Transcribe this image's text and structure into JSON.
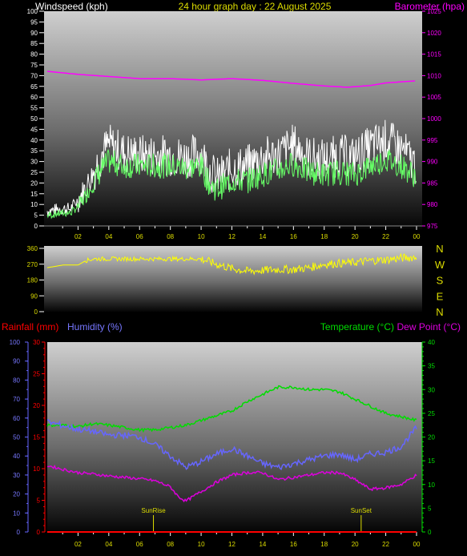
{
  "header": {
    "left_label": "Windspeed (kph)",
    "center_title": "24 hour graph day : 22 August 2025",
    "right_label": "Barometer (hpa)"
  },
  "lower_header": {
    "rain_label": "Rainfall (mm)",
    "humidity_label": "Humidity (%)",
    "temp_label": "Temperature (°C)",
    "dew_label": "Dew Point (°C)"
  },
  "colors": {
    "windspeed": "#ffffff",
    "wind_avg": "#66ff66",
    "barometer": "#ff00ff",
    "direction": "#ffff00",
    "rain": "#ff0000",
    "humidity": "#6666ff",
    "temperature": "#00dd00",
    "dewpoint": "#dd00dd",
    "sunmarker": "#dddd00",
    "axis_text_left": "#ffffff"
  },
  "chart_data": [
    {
      "type": "line",
      "id": "wind_chart",
      "x_ticks": [
        "02",
        "04",
        "06",
        "08",
        "10",
        "12",
        "14",
        "16",
        "18",
        "20",
        "22",
        "00"
      ],
      "y_left_ticks": [
        "100",
        "95",
        "90",
        "85",
        "80",
        "75",
        "70",
        "65",
        "60",
        "55",
        "50",
        "45",
        "40",
        "35",
        "30",
        "25",
        "20",
        "15",
        "10",
        "5",
        "0"
      ],
      "y_right_ticks": [
        "1025",
        "1020",
        "1015",
        "1010",
        "1005",
        "1000",
        "995",
        "990",
        "985",
        "980",
        "975"
      ],
      "ylim_left": [
        0,
        100
      ],
      "ylim_right": [
        975,
        1025
      ],
      "series": [
        {
          "name": "Windspeed (kph)",
          "color": "#ffffff",
          "x": [
            0,
            1,
            1.5,
            2,
            2.5,
            3,
            3.5,
            4,
            5,
            6,
            7,
            8,
            9,
            10,
            10.5,
            11,
            12,
            13,
            14,
            15,
            16,
            17,
            18,
            19,
            20,
            21,
            22,
            23,
            24
          ],
          "values": [
            7,
            8,
            8,
            12,
            18,
            25,
            33,
            38,
            34,
            33,
            33,
            33,
            32,
            34,
            27,
            22,
            27,
            28,
            32,
            33,
            38,
            32,
            31,
            33,
            32,
            37,
            40,
            36,
            28
          ]
        },
        {
          "name": "Average",
          "color": "#66ff66",
          "x": [
            0,
            1,
            1.5,
            2,
            2.5,
            3,
            3.5,
            4,
            5,
            6,
            7,
            8,
            9,
            10,
            10.5,
            11,
            12,
            13,
            14,
            15,
            16,
            17,
            18,
            19,
            20,
            21,
            22,
            23,
            24
          ],
          "values": [
            5,
            6,
            6,
            9,
            14,
            20,
            26,
            30,
            28,
            28,
            28,
            28,
            27,
            28,
            20,
            17,
            21,
            21,
            24,
            26,
            29,
            25,
            24,
            25,
            24,
            28,
            31,
            28,
            23
          ]
        },
        {
          "name": "Barometer (hpa)",
          "color": "#ff00ff",
          "x": [
            0,
            2,
            4,
            6,
            8,
            10,
            12,
            14,
            16,
            18,
            19.5,
            21,
            22,
            24
          ],
          "values": [
            1011,
            1010.3,
            1009.8,
            1009.3,
            1009.3,
            1009.0,
            1009.3,
            1008.9,
            1008.2,
            1007.6,
            1007.3,
            1007.7,
            1008.3,
            1008.8
          ]
        }
      ]
    },
    {
      "type": "line",
      "id": "direction_chart",
      "y_left_ticks": [
        "360",
        "270",
        "180",
        "90",
        "0"
      ],
      "y_right_labels": [
        "N",
        "W",
        "S",
        "E",
        "N"
      ],
      "ylim": [
        0,
        360
      ],
      "series": [
        {
          "name": "Wind direction",
          "color": "#ffff00",
          "x": [
            0,
            1,
            2,
            2.5,
            3,
            4,
            5,
            6,
            7,
            8,
            9,
            10,
            11,
            12,
            13,
            14,
            15,
            16,
            17,
            18,
            19,
            20,
            21,
            22,
            23,
            24
          ],
          "values": [
            250,
            265,
            265,
            290,
            300,
            300,
            300,
            300,
            300,
            300,
            300,
            300,
            270,
            245,
            230,
            235,
            240,
            240,
            250,
            270,
            275,
            280,
            290,
            295,
            305,
            310
          ]
        }
      ]
    },
    {
      "type": "line",
      "id": "climate_chart",
      "x_ticks": [
        "02",
        "04",
        "06",
        "08",
        "10",
        "12",
        "14",
        "16",
        "18",
        "20",
        "22",
        "00"
      ],
      "y_humidity_ticks": [
        "100",
        "90",
        "80",
        "70",
        "60",
        "50",
        "40",
        "30",
        "20",
        "10",
        "0"
      ],
      "y_rain_ticks": [
        "30",
        "25",
        "20",
        "15",
        "10",
        "5",
        "0"
      ],
      "y_temp_ticks": [
        "40",
        "35",
        "30",
        "25",
        "20",
        "15",
        "10",
        "5",
        "0"
      ],
      "ylim_humidity": [
        0,
        100
      ],
      "ylim_rain": [
        0,
        30
      ],
      "ylim_temp": [
        0,
        40
      ],
      "annotations": [
        {
          "label": "SunRise",
          "x": 6.9
        },
        {
          "label": "SunSet",
          "x": 20.4
        }
      ],
      "series": [
        {
          "name": "Temperature (°C)",
          "color": "#00dd00",
          "axis": "temp",
          "x": [
            0,
            1,
            2,
            3,
            4,
            5,
            6,
            7,
            8,
            9,
            10,
            11,
            12,
            13,
            14,
            15,
            16,
            17,
            18,
            19,
            20,
            21,
            22,
            23,
            24
          ],
          "values": [
            22.5,
            22.5,
            22.2,
            22.8,
            22.5,
            22,
            21.5,
            21.5,
            22,
            22.5,
            23.5,
            24.5,
            25.5,
            27.5,
            29,
            30.5,
            30.5,
            30,
            30,
            29.5,
            28,
            26.5,
            25,
            24.3,
            23.5
          ]
        },
        {
          "name": "Dew Point (°C)",
          "color": "#dd00dd",
          "axis": "temp",
          "x": [
            0,
            1,
            2,
            3,
            4,
            5,
            6,
            7,
            8,
            8.5,
            9,
            10,
            11,
            12,
            13,
            14,
            15,
            16,
            17,
            18,
            19,
            20,
            21,
            22,
            23,
            24
          ],
          "values": [
            14,
            13.2,
            12.5,
            12.2,
            11.8,
            11.5,
            11.2,
            10.8,
            9.5,
            7.5,
            6.5,
            8.5,
            10.5,
            12,
            12.5,
            12.5,
            11,
            11.5,
            12,
            12.5,
            12.5,
            11,
            9,
            9.3,
            10,
            12
          ]
        },
        {
          "name": "Humidity (%)",
          "color": "#6666ff",
          "axis": "humidity",
          "x": [
            0,
            1,
            2,
            3,
            4,
            5,
            6,
            7,
            8,
            9,
            10,
            11,
            12,
            13,
            14,
            15,
            16,
            17,
            18,
            19,
            20,
            21,
            22,
            23,
            24
          ],
          "values": [
            58,
            56,
            54,
            53,
            51,
            51,
            50,
            46,
            40,
            34,
            37,
            41,
            44,
            40,
            36,
            34,
            36,
            38,
            40,
            41,
            38,
            41,
            42,
            45,
            55
          ]
        },
        {
          "name": "Rainfall (mm)",
          "color": "#ff0000",
          "axis": "rain",
          "x": [
            0,
            24
          ],
          "values": [
            0,
            0
          ]
        }
      ]
    }
  ]
}
